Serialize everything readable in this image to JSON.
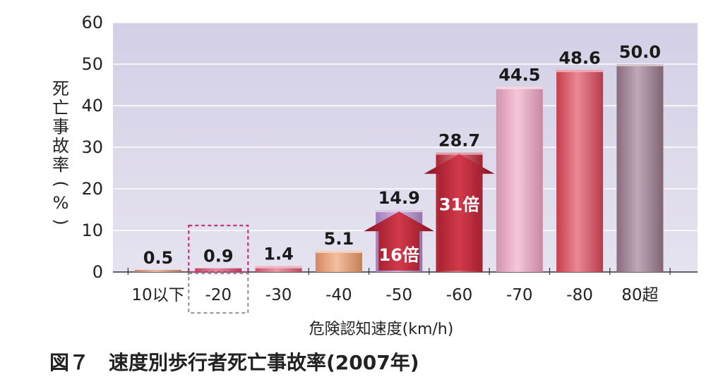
{
  "chart_data": {
    "type": "bar",
    "categories": [
      "10以下",
      "-20",
      "-30",
      "-40",
      "-50",
      "-60",
      "-70",
      "-80",
      "80超"
    ],
    "values": [
      0.5,
      0.9,
      1.4,
      5.1,
      14.9,
      28.7,
      44.5,
      48.6,
      50.0
    ],
    "value_labels": [
      "0.5",
      "0.9",
      "1.4",
      "5.1",
      "14.9",
      "28.7",
      "44.5",
      "48.6",
      "50.0"
    ],
    "bar_colors": [
      "#e2946e",
      "#d7506b",
      "#e0607a",
      "#ef9c6c",
      "#b68ed1",
      "#c22a3a",
      "#f1a7c5",
      "#e0485a",
      "#9c7a8e"
    ],
    "xlabel": "危険認知速度(km/h)",
    "ylabel": "死亡事故率(%)",
    "ylim": [
      0,
      60
    ],
    "yticks": [
      0,
      10,
      20,
      30,
      40,
      50,
      60
    ],
    "grid": true,
    "plot_background": "#d9d6e8",
    "highlight_category": "-20",
    "annotations": [
      {
        "text": "16倍",
        "category": "-50",
        "from_category": "-20",
        "value": 14.9
      },
      {
        "text": "31倍",
        "category": "-60",
        "from_category": "-20",
        "value": 28.7
      }
    ]
  },
  "caption": "図７　速度別歩行者死亡事故率(2007年)"
}
